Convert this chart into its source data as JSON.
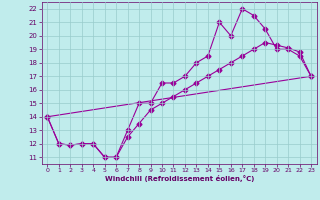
{
  "xlabel": "Windchill (Refroidissement éolien,°C)",
  "bg_color": "#c0ecec",
  "line_color": "#990099",
  "grid_color": "#99cccc",
  "axis_label_color": "#660066",
  "tick_label_color": "#660066",
  "spine_color": "#660066",
  "xlim": [
    -0.5,
    23.5
  ],
  "ylim": [
    10.5,
    22.5
  ],
  "xticks": [
    0,
    1,
    2,
    3,
    4,
    5,
    6,
    7,
    8,
    9,
    10,
    11,
    12,
    13,
    14,
    15,
    16,
    17,
    18,
    19,
    20,
    21,
    22,
    23
  ],
  "yticks": [
    11,
    12,
    13,
    14,
    15,
    16,
    17,
    18,
    19,
    20,
    21,
    22
  ],
  "line1_x": [
    0,
    1,
    2,
    3,
    4,
    5,
    6,
    7,
    8,
    9,
    10,
    11,
    12,
    13,
    14,
    15,
    16,
    17,
    18,
    19,
    20,
    21,
    22,
    23
  ],
  "line1_y": [
    14,
    12,
    11.9,
    12,
    12,
    11,
    11,
    13,
    15,
    15,
    16.5,
    16.5,
    17,
    18,
    18.5,
    21,
    20,
    22,
    21.5,
    20.5,
    19,
    19,
    18.5,
    17
  ],
  "line2_x": [
    0,
    1,
    2,
    3,
    4,
    5,
    6,
    7,
    8,
    9,
    10,
    11,
    12,
    13,
    14,
    15,
    16,
    17,
    18,
    19,
    20,
    21,
    22,
    23
  ],
  "line2_y": [
    14,
    12,
    11.9,
    12,
    12,
    11,
    11,
    12.5,
    13.5,
    14.5,
    15,
    15.5,
    16,
    16.5,
    17,
    17.5,
    18,
    18.5,
    19,
    19.5,
    19.3,
    19.1,
    18.8,
    17
  ],
  "line3_x": [
    0,
    23
  ],
  "line3_y": [
    14,
    17
  ],
  "marker": "D",
  "marker_size": 2.5,
  "linewidth": 0.8
}
